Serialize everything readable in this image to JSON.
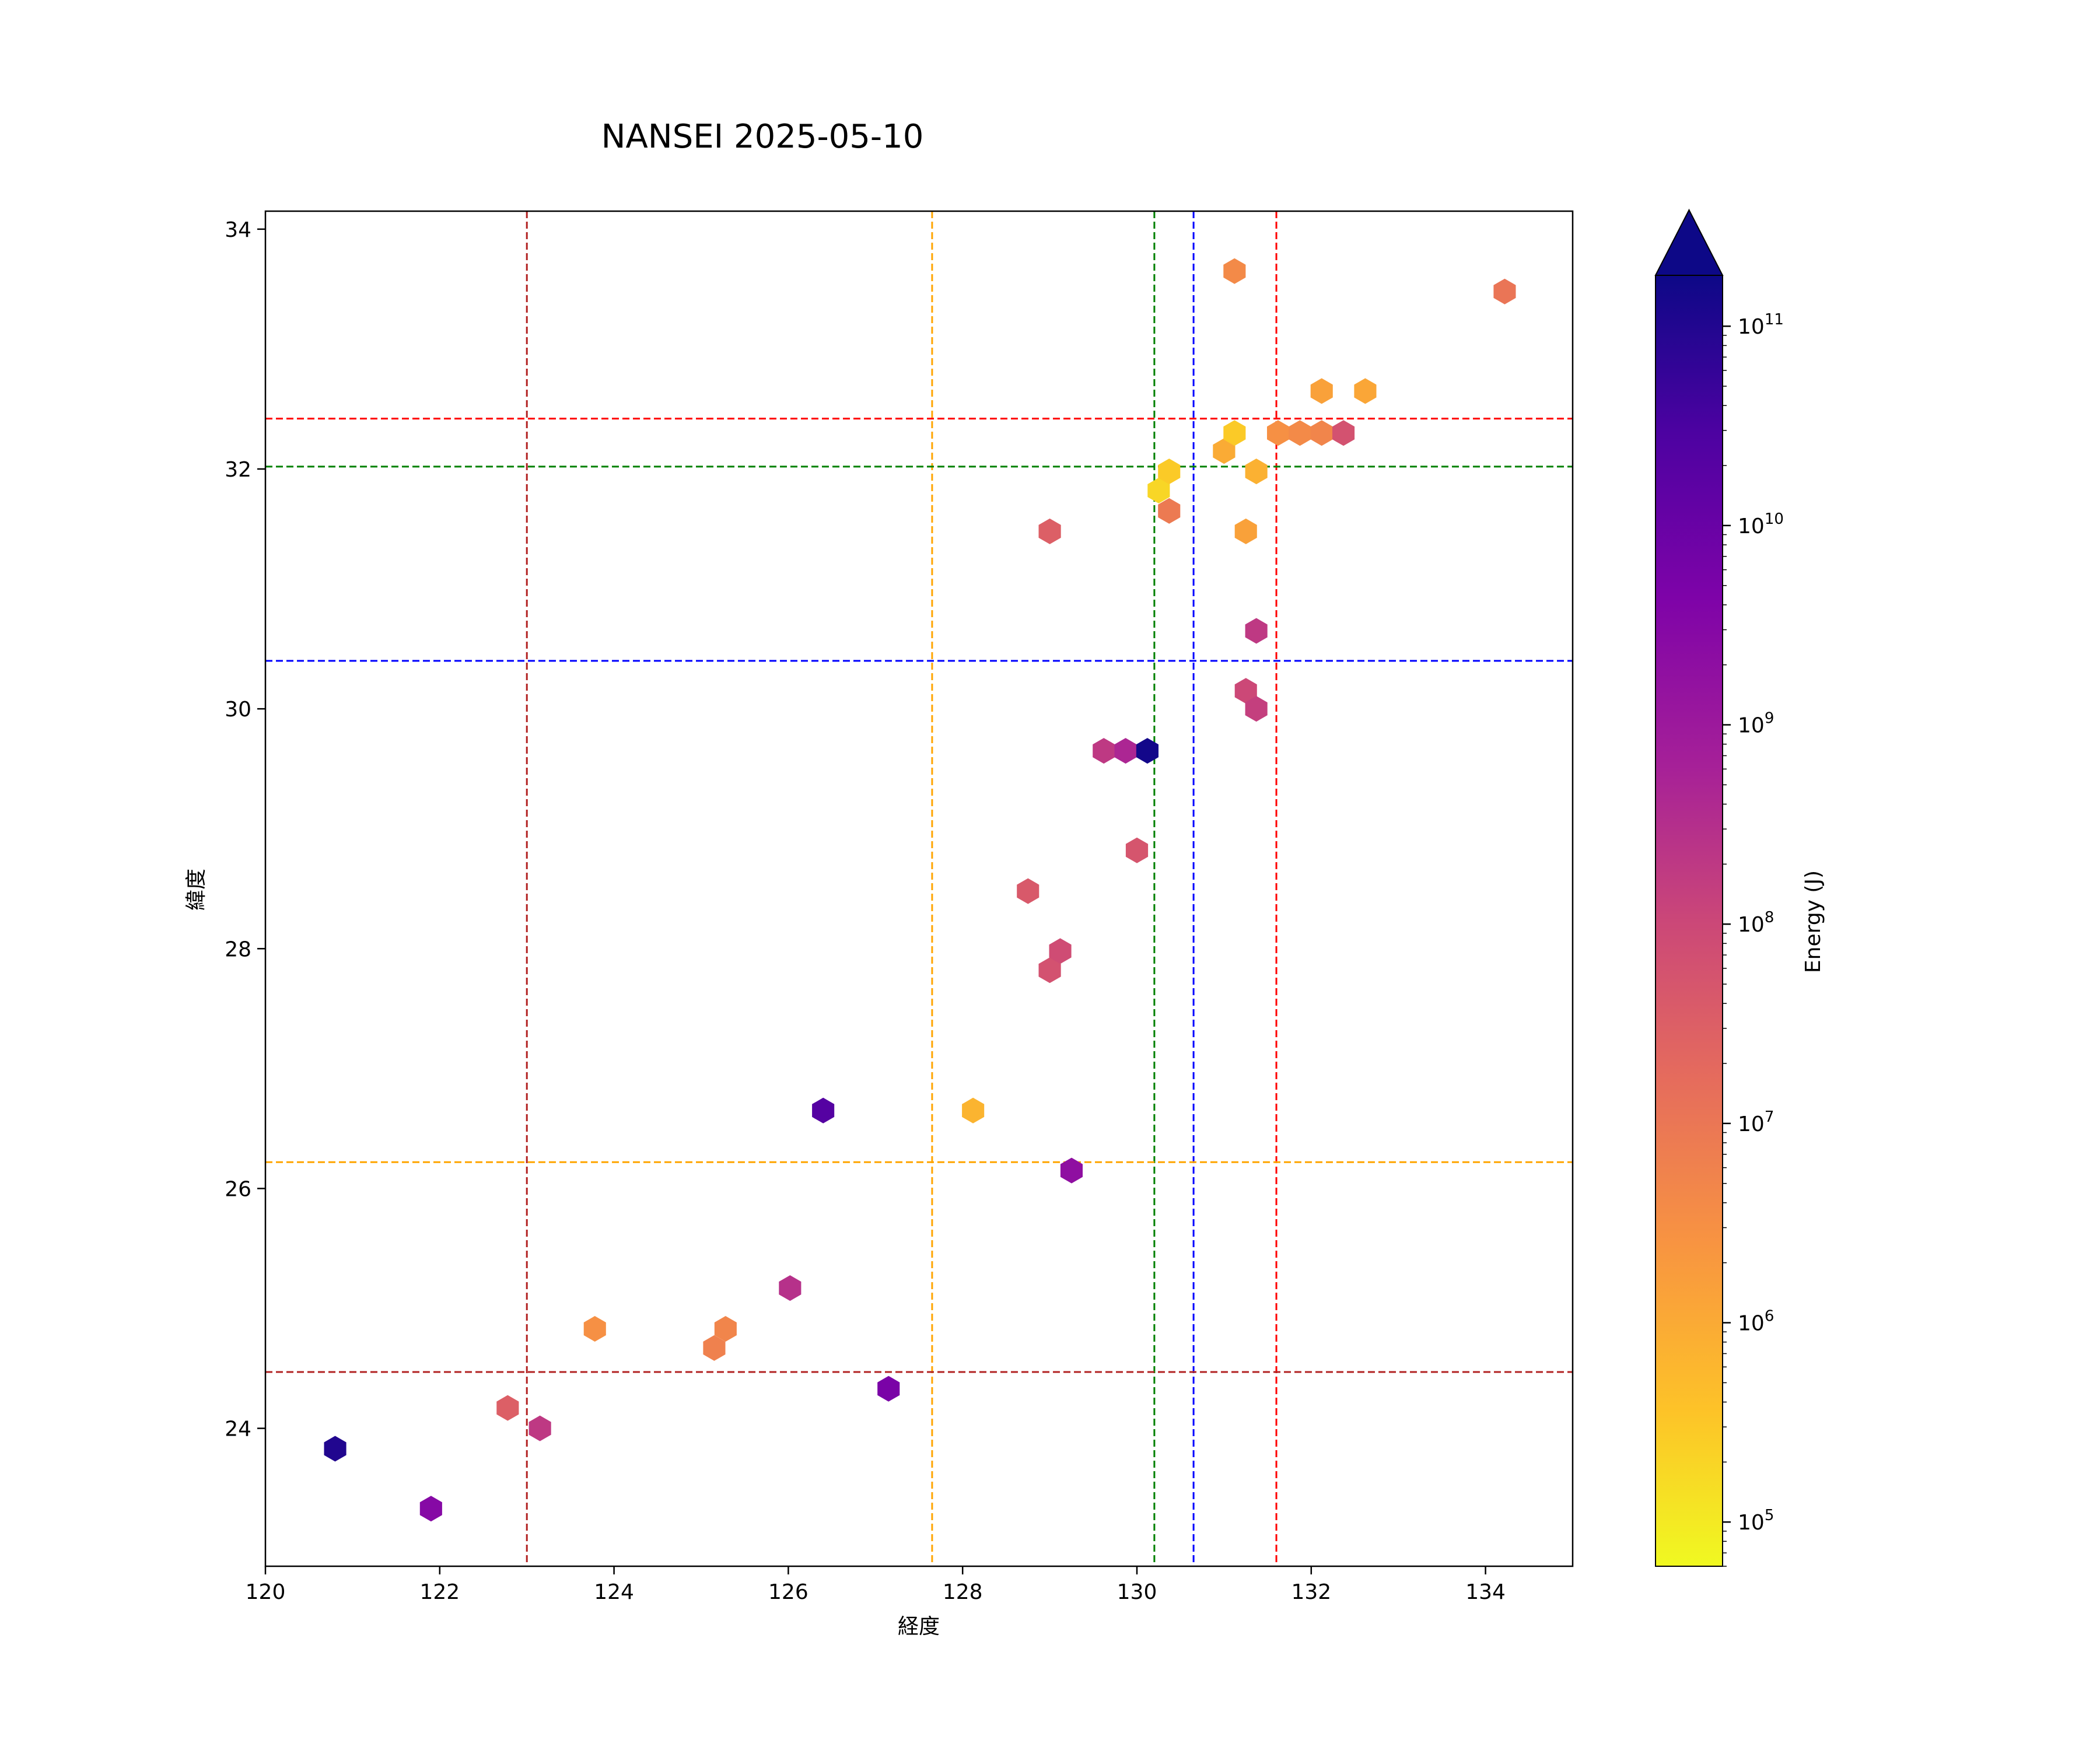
{
  "chart_data": {
    "type": "hexbin",
    "title": "NANSEI 2025-05-10",
    "xlabel": "経度",
    "ylabel": "緯度",
    "xlim": [
      120,
      135
    ],
    "ylim": [
      22.85,
      34.15
    ],
    "xticks": [
      120,
      122,
      124,
      126,
      128,
      130,
      132,
      134
    ],
    "yticks": [
      24,
      26,
      28,
      30,
      32,
      34
    ],
    "grid": false,
    "colorbar": {
      "label": "Energy (J)",
      "scale": "log",
      "range": [
        60000,
        180000000000
      ],
      "extend": "max",
      "ticks": [
        {
          "value": 100000,
          "base": "10",
          "exp": "5"
        },
        {
          "value": 1000000,
          "base": "10",
          "exp": "6"
        },
        {
          "value": 10000000,
          "base": "10",
          "exp": "7"
        },
        {
          "value": 100000000,
          "base": "10",
          "exp": "8"
        },
        {
          "value": 1000000000,
          "base": "10",
          "exp": "9"
        },
        {
          "value": 10000000000,
          "base": "10",
          "exp": "10"
        },
        {
          "value": 100000000000,
          "base": "10",
          "exp": "11"
        }
      ],
      "colormap": "plasma_r"
    },
    "reference_lines": [
      {
        "orientation": "vertical",
        "value": 123.0,
        "color": "#b22222"
      },
      {
        "orientation": "vertical",
        "value": 127.65,
        "color": "#ffa500"
      },
      {
        "orientation": "vertical",
        "value": 130.2,
        "color": "#008000"
      },
      {
        "orientation": "vertical",
        "value": 130.65,
        "color": "#0000ff"
      },
      {
        "orientation": "vertical",
        "value": 131.6,
        "color": "#ff0000"
      },
      {
        "orientation": "horizontal",
        "value": 32.42,
        "color": "#ff0000"
      },
      {
        "orientation": "horizontal",
        "value": 32.02,
        "color": "#008000"
      },
      {
        "orientation": "horizontal",
        "value": 30.4,
        "color": "#0000ff"
      },
      {
        "orientation": "horizontal",
        "value": 26.22,
        "color": "#ffa500"
      },
      {
        "orientation": "horizontal",
        "value": 24.47,
        "color": "#b22222"
      }
    ],
    "points": [
      {
        "x": 120.8,
        "y": 23.83,
        "energy": 100000000000
      },
      {
        "x": 121.9,
        "y": 23.33,
        "energy": 3000000000
      },
      {
        "x": 122.78,
        "y": 24.17,
        "energy": 30000000
      },
      {
        "x": 123.15,
        "y": 24.0,
        "energy": 200000000
      },
      {
        "x": 123.78,
        "y": 24.83,
        "energy": 3000000
      },
      {
        "x": 125.15,
        "y": 24.67,
        "energy": 6000000
      },
      {
        "x": 125.28,
        "y": 24.83,
        "energy": 5000000
      },
      {
        "x": 126.02,
        "y": 25.17,
        "energy": 300000000
      },
      {
        "x": 127.15,
        "y": 24.33,
        "energy": 5000000000
      },
      {
        "x": 126.4,
        "y": 26.65,
        "energy": 20000000000
      },
      {
        "x": 128.12,
        "y": 26.65,
        "energy": 700000
      },
      {
        "x": 129.25,
        "y": 26.15,
        "energy": 2000000000
      },
      {
        "x": 129.0,
        "y": 27.82,
        "energy": 60000000
      },
      {
        "x": 129.12,
        "y": 27.98,
        "energy": 80000000
      },
      {
        "x": 128.75,
        "y": 28.48,
        "energy": 40000000
      },
      {
        "x": 130.0,
        "y": 28.82,
        "energy": 50000000
      },
      {
        "x": 129.62,
        "y": 29.65,
        "energy": 200000000
      },
      {
        "x": 129.87,
        "y": 29.65,
        "energy": 500000000
      },
      {
        "x": 130.12,
        "y": 29.65,
        "energy": 150000000000
      },
      {
        "x": 131.25,
        "y": 30.15,
        "energy": 100000000
      },
      {
        "x": 131.37,
        "y": 30.0,
        "energy": 150000000
      },
      {
        "x": 131.37,
        "y": 30.65,
        "energy": 200000000
      },
      {
        "x": 129.0,
        "y": 31.48,
        "energy": 30000000
      },
      {
        "x": 130.25,
        "y": 31.82,
        "energy": 200000
      },
      {
        "x": 130.37,
        "y": 31.98,
        "energy": 300000
      },
      {
        "x": 130.37,
        "y": 31.65,
        "energy": 8000000
      },
      {
        "x": 131.25,
        "y": 31.48,
        "energy": 1500000
      },
      {
        "x": 131.37,
        "y": 31.98,
        "energy": 800000
      },
      {
        "x": 131.0,
        "y": 32.15,
        "energy": 1000000
      },
      {
        "x": 131.12,
        "y": 32.3,
        "energy": 300000
      },
      {
        "x": 131.62,
        "y": 32.3,
        "energy": 3000000
      },
      {
        "x": 131.87,
        "y": 32.3,
        "energy": 4000000
      },
      {
        "x": 132.12,
        "y": 32.3,
        "energy": 5000000
      },
      {
        "x": 132.37,
        "y": 32.3,
        "energy": 60000000
      },
      {
        "x": 132.12,
        "y": 32.65,
        "energy": 1500000
      },
      {
        "x": 132.62,
        "y": 32.65,
        "energy": 1200000
      },
      {
        "x": 131.12,
        "y": 33.65,
        "energy": 4000000
      },
      {
        "x": 134.22,
        "y": 33.48,
        "energy": 10000000
      }
    ]
  }
}
